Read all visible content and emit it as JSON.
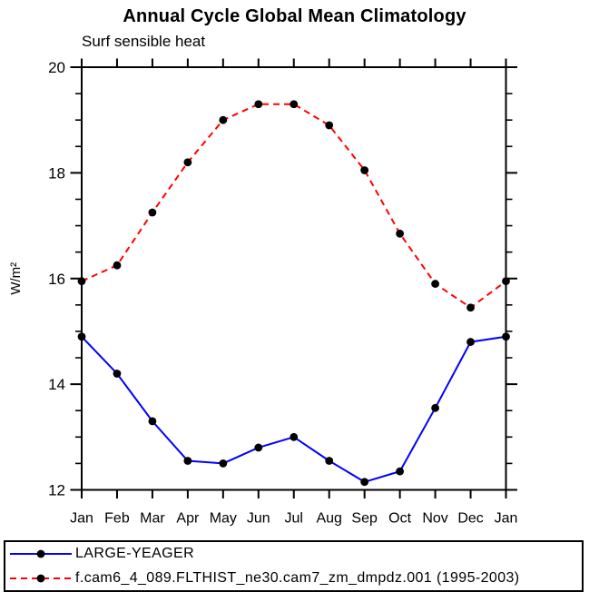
{
  "chart_data": {
    "type": "line",
    "title": "Annual Cycle Global Mean Climatology",
    "subtitle": "Surf sensible heat",
    "ylabel": "W/m²",
    "categories": [
      "Jan",
      "Feb",
      "Mar",
      "Apr",
      "May",
      "Jun",
      "Jul",
      "Aug",
      "Sep",
      "Oct",
      "Nov",
      "Dec",
      "Jan"
    ],
    "ylim": [
      12,
      20
    ],
    "y_major_ticks": [
      12,
      14,
      16,
      18,
      20
    ],
    "y_minor_step": 0.5,
    "grid": false,
    "legend_position": "bottom box",
    "axis_color": "#000000",
    "marker_color": "#000000",
    "series": [
      {
        "name": "LARGE-YEAGER",
        "color": "#0000ff",
        "line_style": "solid",
        "marker": "circle",
        "values": [
          14.9,
          14.2,
          13.3,
          12.55,
          12.5,
          12.8,
          13.0,
          12.55,
          12.15,
          12.35,
          13.55,
          14.8,
          14.9
        ]
      },
      {
        "name": "f.cam6_4_089.FLTHIST_ne30.cam7_zm_dmpdz.001 (1995-2003)",
        "color": "#ff0000",
        "line_style": "dashed",
        "marker": "circle",
        "values": [
          15.95,
          16.25,
          17.25,
          18.2,
          19.0,
          19.3,
          19.3,
          18.9,
          18.05,
          16.85,
          15.9,
          15.45,
          15.95
        ]
      }
    ]
  }
}
